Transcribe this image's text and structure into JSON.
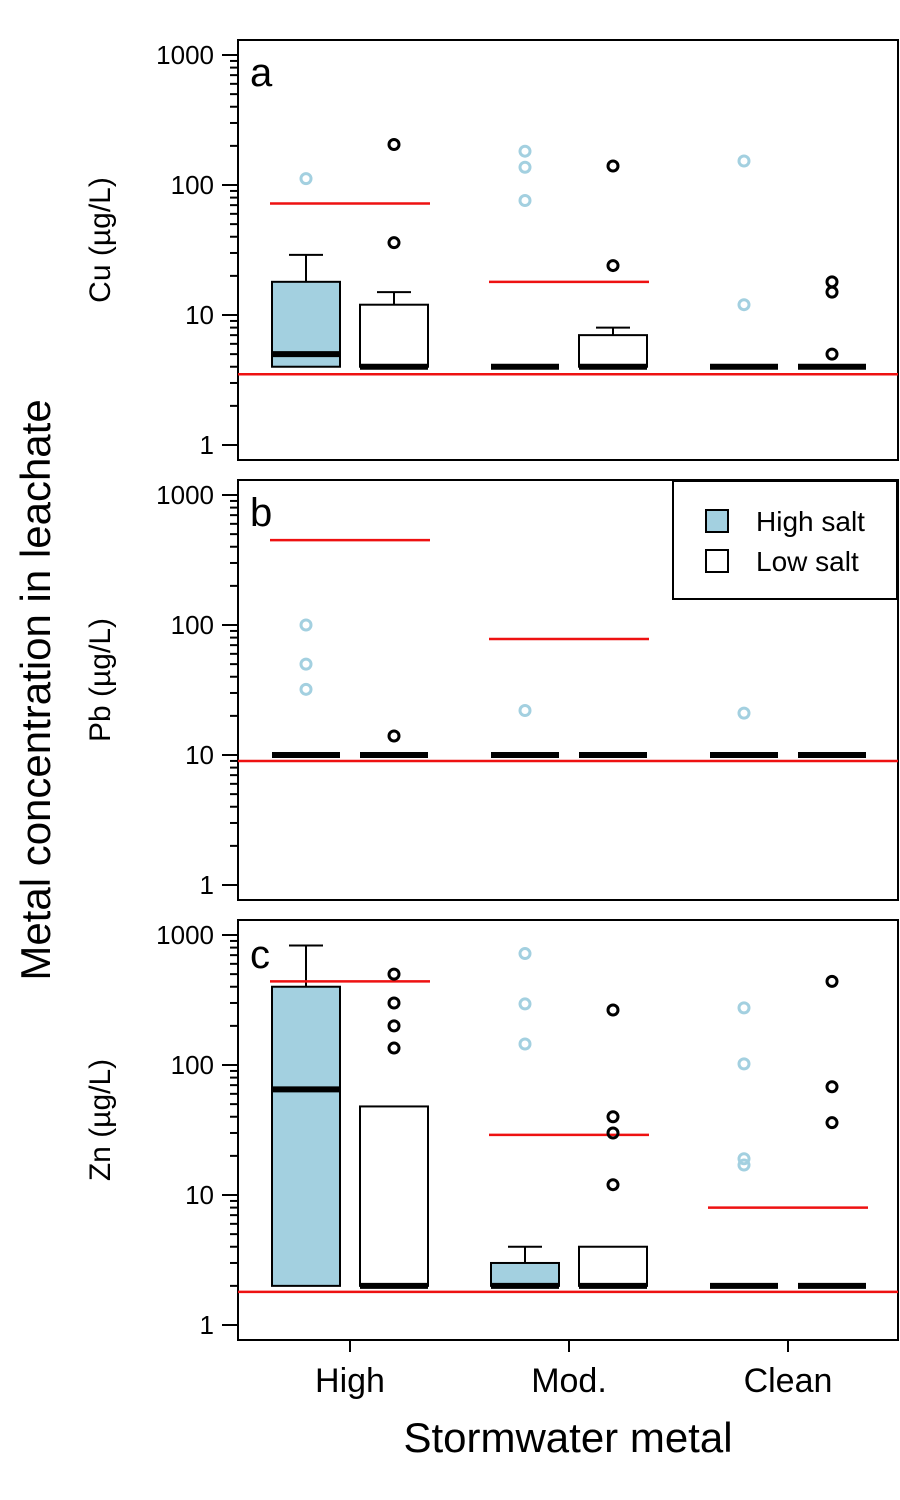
{
  "figure": {
    "y_title": "Metal concentration in leachate",
    "x_title": "Stormwater metal",
    "categories": [
      "High",
      "Mod.",
      "Clean"
    ],
    "legend": {
      "placement": "top-right of panel b",
      "entries": [
        {
          "label": "High salt",
          "color": "#a3d0e0"
        },
        {
          "label": "Low salt",
          "color": "#ffffff"
        }
      ]
    }
  },
  "chart_data": [
    {
      "type": "box",
      "panel": "a",
      "ylabel": "Cu (µg/L)",
      "yscale": "log",
      "ylim": [
        1,
        1000
      ],
      "yticks": [
        "1",
        "10",
        "100",
        "1000"
      ],
      "reference_line": 3.5,
      "groups": [
        {
          "category": "High",
          "series": "High salt",
          "min": 4,
          "q1": 4,
          "median": 5,
          "q3": 18,
          "max": 29,
          "outliers": [
            112
          ],
          "threshold": 72
        },
        {
          "category": "High",
          "series": "Low salt",
          "min": 4,
          "q1": 4,
          "median": 4,
          "q3": 12,
          "max": 15,
          "outliers": [
            36,
            205
          ]
        },
        {
          "category": "Mod.",
          "series": "High salt",
          "min": 4,
          "q1": 4,
          "median": 4,
          "q3": 4,
          "max": 4,
          "outliers": [
            76,
            137,
            182
          ],
          "threshold": 18
        },
        {
          "category": "Mod.",
          "series": "Low salt",
          "min": 4,
          "q1": 4,
          "median": 4,
          "q3": 7,
          "max": 8,
          "outliers": [
            24,
            140
          ]
        },
        {
          "category": "Clean",
          "series": "High salt",
          "min": 4,
          "q1": 4,
          "median": 4,
          "q3": 4,
          "max": 4,
          "outliers": [
            12,
            153
          ]
        },
        {
          "category": "Clean",
          "series": "Low salt",
          "min": 4,
          "q1": 4,
          "median": 4,
          "q3": 4,
          "max": 4,
          "outliers": [
            5,
            15,
            18
          ]
        }
      ]
    },
    {
      "type": "box",
      "panel": "b",
      "ylabel": "Pb (µg/L)",
      "yscale": "log",
      "ylim": [
        1,
        1000
      ],
      "yticks": [
        "1",
        "10",
        "100",
        "1000"
      ],
      "reference_line": 9,
      "groups": [
        {
          "category": "High",
          "series": "High salt",
          "min": 10,
          "q1": 10,
          "median": 10,
          "q3": 10,
          "max": 10,
          "outliers": [
            32,
            50,
            100
          ],
          "threshold": 450
        },
        {
          "category": "High",
          "series": "Low salt",
          "min": 10,
          "q1": 10,
          "median": 10,
          "q3": 10,
          "max": 10,
          "outliers": [
            14
          ]
        },
        {
          "category": "Mod.",
          "series": "High salt",
          "min": 10,
          "q1": 10,
          "median": 10,
          "q3": 10,
          "max": 10,
          "outliers": [
            22
          ],
          "threshold": 78
        },
        {
          "category": "Mod.",
          "series": "Low salt",
          "min": 10,
          "q1": 10,
          "median": 10,
          "q3": 10,
          "max": 10,
          "outliers": []
        },
        {
          "category": "Clean",
          "series": "High salt",
          "min": 10,
          "q1": 10,
          "median": 10,
          "q3": 10,
          "max": 10,
          "outliers": [
            21
          ]
        },
        {
          "category": "Clean",
          "series": "Low salt",
          "min": 10,
          "q1": 10,
          "median": 10,
          "q3": 10,
          "max": 10,
          "outliers": []
        }
      ]
    },
    {
      "type": "box",
      "panel": "c",
      "ylabel": "Zn (µg/L)",
      "yscale": "log",
      "ylim": [
        1,
        1000
      ],
      "yticks": [
        "1",
        "10",
        "100",
        "1000"
      ],
      "reference_line": 1.8,
      "groups": [
        {
          "category": "High",
          "series": "High salt",
          "min": 2,
          "q1": 2,
          "median": 65,
          "q3": 400,
          "max": 830,
          "outliers": [],
          "threshold": 440
        },
        {
          "category": "High",
          "series": "Low salt",
          "min": 2,
          "q1": 2,
          "median": 2,
          "q3": 48,
          "max": 48,
          "outliers": [
            135,
            200,
            300,
            500
          ]
        },
        {
          "category": "Mod.",
          "series": "High salt",
          "min": 2,
          "q1": 2,
          "median": 2,
          "q3": 3,
          "max": 4,
          "outliers": [
            145,
            295,
            720
          ],
          "threshold": 29
        },
        {
          "category": "Mod.",
          "series": "Low salt",
          "min": 2,
          "q1": 2,
          "median": 2,
          "q3": 4,
          "max": 4,
          "outliers": [
            12,
            30,
            40,
            265
          ]
        },
        {
          "category": "Clean",
          "series": "High salt",
          "min": 2,
          "q1": 2,
          "median": 2,
          "q3": 2,
          "max": 2,
          "outliers": [
            17,
            19,
            102,
            275
          ],
          "threshold": 8
        },
        {
          "category": "Clean",
          "series": "Low salt",
          "min": 2,
          "q1": 2,
          "median": 2,
          "q3": 2,
          "max": 2,
          "outliers": [
            36,
            68,
            440
          ]
        }
      ]
    }
  ],
  "colors": {
    "high_salt_fill": "#a3d0e0",
    "high_salt_outlier": "#a3d0e0",
    "low_salt_fill": "#ffffff",
    "low_salt_outlier": "#000000",
    "threshold_line": "#ee1111",
    "axis": "#000000"
  }
}
